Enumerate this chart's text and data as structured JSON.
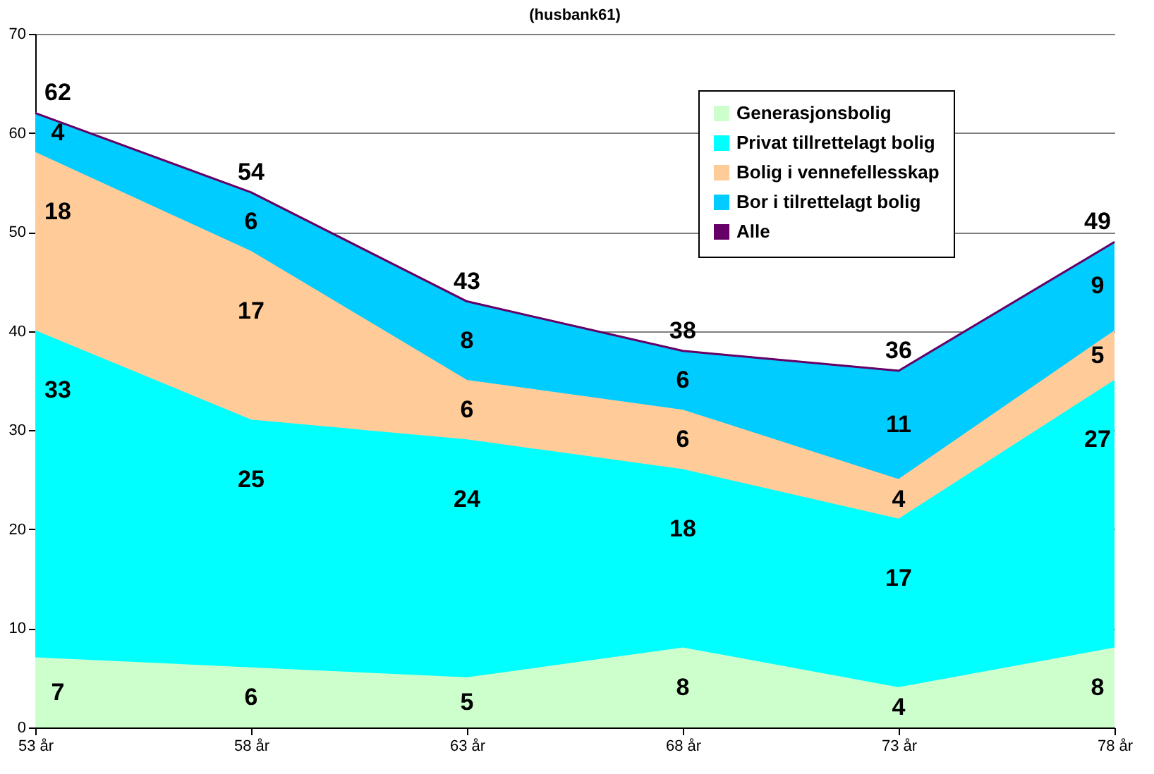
{
  "chart_data": {
    "type": "area",
    "stacked": true,
    "title": "(husbank61)",
    "categories": [
      "53 år",
      "58 år",
      "63 år",
      "68 år",
      "73 år",
      "78 år"
    ],
    "series": [
      {
        "name": "Generasjonsbolig",
        "color": "#ccffcc",
        "values": [
          7,
          6,
          5,
          8,
          4,
          8
        ]
      },
      {
        "name": "Privat tillrettelagt bolig",
        "color": "#00ffff",
        "values": [
          33,
          25,
          24,
          18,
          17,
          27
        ]
      },
      {
        "name": "Bolig i vennefellesskap",
        "color": "#ffcc99",
        "values": [
          18,
          17,
          6,
          6,
          4,
          5
        ]
      },
      {
        "name": "Bor i tilrettelagt bolig",
        "color": "#00ccff",
        "values": [
          4,
          6,
          8,
          6,
          11,
          9
        ]
      },
      {
        "name": "Alle",
        "type": "line",
        "color": "#660066",
        "values": [
          62,
          54,
          43,
          38,
          36,
          49
        ]
      }
    ],
    "data_labels": true,
    "ylim": [
      0,
      70
    ],
    "yticks": [
      0,
      10,
      20,
      30,
      40,
      50,
      60,
      70
    ],
    "grid": "y",
    "legend": "top right"
  }
}
